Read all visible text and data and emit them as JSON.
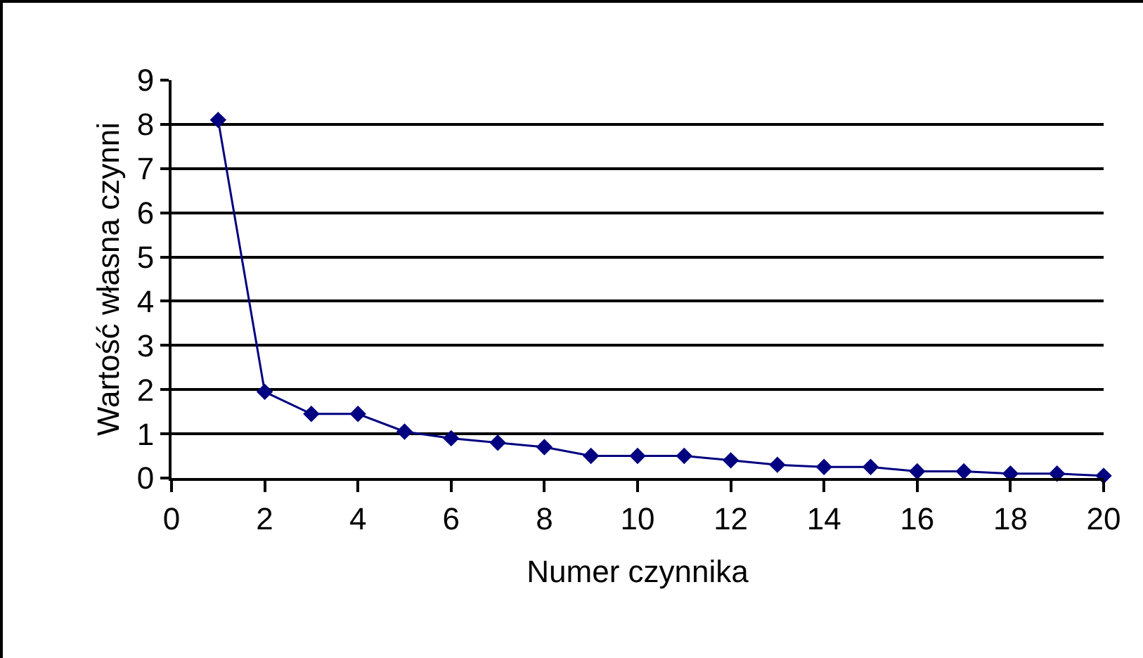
{
  "chart_data": {
    "type": "line",
    "xlabel": "Numer czynnika",
    "ylabel": "Wartość własna czynni",
    "x": [
      1,
      2,
      3,
      4,
      5,
      6,
      7,
      8,
      9,
      10,
      11,
      12,
      13,
      14,
      15,
      16,
      17,
      18,
      19,
      20
    ],
    "series": [
      {
        "color": "#000080",
        "values": [
          8.1,
          1.95,
          1.45,
          1.45,
          1.05,
          0.9,
          0.8,
          0.7,
          0.5,
          0.5,
          0.5,
          0.4,
          0.3,
          0.25,
          0.25,
          0.15,
          0.15,
          0.1,
          0.1,
          0.05
        ]
      }
    ],
    "xlim": [
      0,
      20
    ],
    "xticks": [
      0,
      2,
      4,
      6,
      8,
      10,
      12,
      14,
      16,
      18,
      20
    ],
    "ylim": [
      0,
      9
    ],
    "yticks": [
      0,
      1,
      2,
      3,
      4,
      5,
      6,
      7,
      8,
      9
    ],
    "grid": "y",
    "legend": false,
    "marker": "diamond",
    "line_style": "solid"
  }
}
